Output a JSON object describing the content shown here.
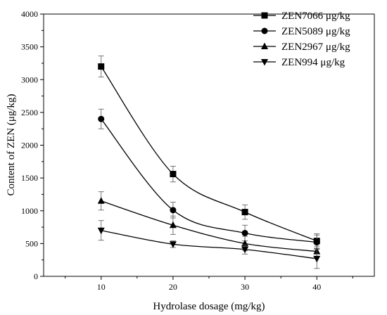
{
  "chart_data": {
    "type": "line",
    "title": "",
    "xlabel": "Hydrolase dosage (mg/kg)",
    "ylabel": "Content of ZEN (μg/kg)",
    "x": [
      10,
      20,
      30,
      40
    ],
    "xlim": [
      2,
      48
    ],
    "ylim": [
      0,
      4000
    ],
    "xticks": [
      "10",
      "20",
      "30",
      "40"
    ],
    "yticks": [
      "0",
      "500",
      "1000",
      "1500",
      "2000",
      "2500",
      "3000",
      "3500",
      "4000"
    ],
    "grid": false,
    "legend_position": "top-right",
    "series": [
      {
        "name": "ZEN7066 μg/kg",
        "marker": "square",
        "values": [
          3200,
          1560,
          980,
          540
        ],
        "errors": [
          160,
          120,
          110,
          110
        ]
      },
      {
        "name": "ZEN5089 μg/kg",
        "marker": "circle",
        "values": [
          2400,
          1010,
          660,
          520
        ],
        "errors": [
          150,
          120,
          120,
          110
        ]
      },
      {
        "name": "ZEN2967 μg/kg",
        "marker": "triangle-up",
        "values": [
          1150,
          780,
          500,
          380
        ],
        "errors": [
          140,
          140,
          110,
          80
        ]
      },
      {
        "name": "ZEN994 μg/kg",
        "marker": "triangle-down",
        "values": [
          700,
          490,
          410,
          270
        ],
        "errors": [
          150,
          50,
          70,
          150
        ]
      }
    ]
  }
}
